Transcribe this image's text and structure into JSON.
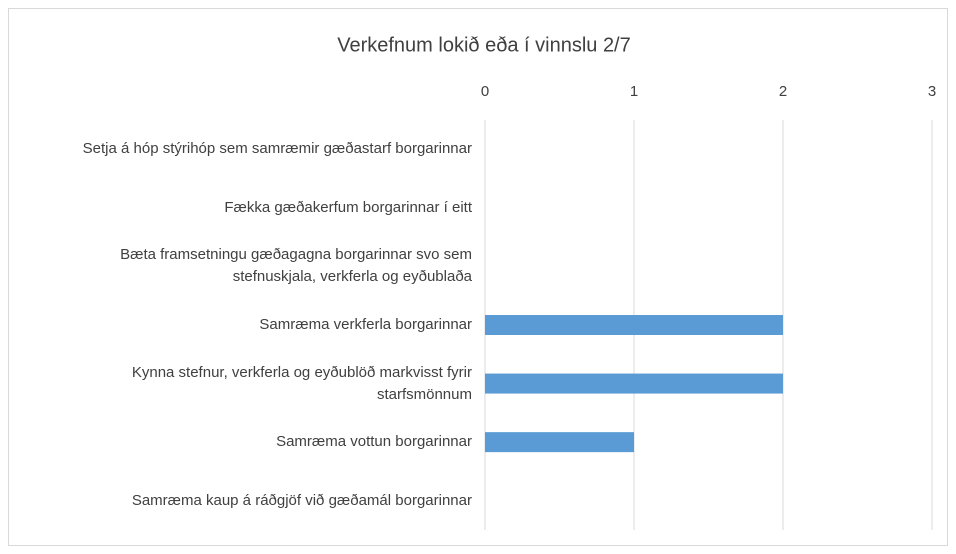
{
  "chart_data": {
    "type": "bar",
    "orientation": "horizontal",
    "title": "Verkefnum lokið eða í vinnslu 2/7",
    "categories": [
      "Setja á hóp stýrihóp sem samræmir gæðastarf borgarinnar",
      "Fækka gæðakerfum borgarinnar í eitt",
      "Bæta framsetningu gæðagagna borgarinnar svo sem stefnuskjala, verkferla og eyðublaða",
      "Samræma verkferla borgarinnar",
      "Kynna stefnur, verkferla og eyðublöð markvisst fyrir starfsmönnum",
      "Samræma vottun borgarinnar",
      "Samræma kaup á ráðgjöf við gæðamál borgarinnar"
    ],
    "values": [
      0,
      0,
      0,
      2,
      2,
      1,
      0
    ],
    "color": "#5b9bd5",
    "xlim": [
      0,
      3
    ],
    "xticks": [
      0,
      1,
      2,
      3
    ],
    "grid": true
  }
}
